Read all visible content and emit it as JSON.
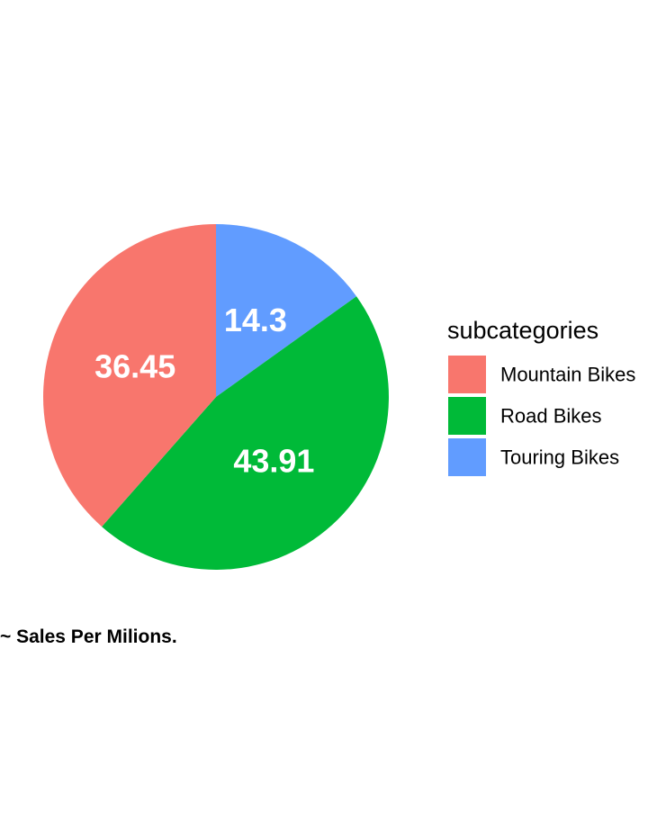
{
  "chart_data": {
    "type": "pie",
    "categories": [
      "Mountain Bikes",
      "Road Bikes",
      "Touring Bikes"
    ],
    "values": [
      36.45,
      43.91,
      14.3
    ],
    "labels": [
      "36.45",
      "43.91",
      "14.3"
    ],
    "colors": [
      "#F8766D",
      "#00BA38",
      "#619CFF"
    ],
    "legend_title": "subcategories",
    "legend_position": "right",
    "caption": "~ Sales Per Milions."
  }
}
